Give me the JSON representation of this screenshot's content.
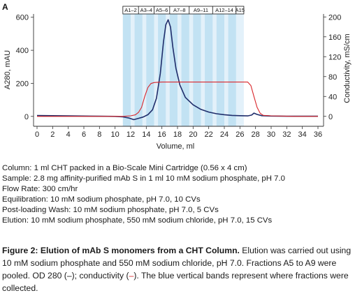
{
  "panel_label": "A",
  "chart_data": {
    "type": "line",
    "xlabel": "Volume, ml",
    "ylabel_left": "A280, mAU",
    "ylabel_right": "Conductivity, mS/cm",
    "xlim": [
      0,
      36
    ],
    "ylim_left": [
      -60,
      620
    ],
    "ylim_right": [
      -20,
      206
    ],
    "x_ticks": [
      0,
      2,
      4,
      6,
      8,
      10,
      12,
      14,
      16,
      18,
      20,
      22,
      24,
      26,
      28,
      30,
      32,
      34,
      36
    ],
    "y_left_ticks": [
      0,
      200,
      400,
      600
    ],
    "y_right_ticks": [
      0,
      40,
      80,
      120,
      160,
      200
    ],
    "fractions": [
      {
        "label": "A1–2",
        "start": 11,
        "end": 13
      },
      {
        "label": "A3–4",
        "start": 13,
        "end": 15
      },
      {
        "label": "A5–6",
        "start": 15,
        "end": 17
      },
      {
        "label": "A7–8",
        "start": 17,
        "end": 19.5
      },
      {
        "label": "A9–11",
        "start": 19.5,
        "end": 22.5
      },
      {
        "label": "A12–14",
        "start": 22.5,
        "end": 25.5
      },
      {
        "label": "A15",
        "start": 25.5,
        "end": 26.5
      }
    ],
    "collected_bands": [
      [
        11,
        12
      ],
      [
        12.5,
        13.5
      ],
      [
        14,
        15
      ],
      [
        15.5,
        16.5
      ],
      [
        17,
        18
      ],
      [
        18.5,
        19.5
      ],
      [
        20,
        21
      ],
      [
        21.5,
        22.5
      ],
      [
        23,
        24
      ],
      [
        24.5,
        25.5
      ]
    ],
    "series": [
      {
        "name": "OD 280",
        "color": "#1f2d6b",
        "axis": "left",
        "x": [
          0,
          4,
          8,
          10,
          11,
          11.8,
          12.4,
          13,
          13.6,
          14.2,
          14.8,
          15.3,
          15.8,
          16.2,
          16.5,
          16.8,
          17.1,
          17.4,
          17.8,
          18.3,
          19,
          20,
          21,
          22,
          23,
          24,
          25,
          26,
          27,
          27.5,
          27.8,
          28.2,
          28.8,
          30,
          32,
          34,
          36
        ],
        "y": [
          5,
          3,
          1,
          0,
          -3,
          -10,
          -20,
          -12,
          -4,
          10,
          40,
          110,
          260,
          450,
          555,
          585,
          540,
          420,
          290,
          190,
          115,
          70,
          42,
          26,
          16,
          10,
          6,
          4,
          3,
          8,
          20,
          12,
          4,
          2,
          1,
          1,
          1
        ]
      },
      {
        "name": "Conductivity",
        "color": "#d9262b",
        "axis": "right",
        "x": [
          0,
          8,
          11,
          12,
          12.6,
          13,
          13.4,
          13.8,
          14.2,
          14.6,
          15,
          16,
          20,
          24,
          27,
          27.4,
          27.8,
          28.2,
          28.6,
          29,
          30,
          33,
          36
        ],
        "y": [
          0,
          0,
          0,
          1,
          3,
          8,
          18,
          40,
          58,
          66,
          68,
          69,
          69,
          69,
          69,
          62,
          40,
          18,
          6,
          2,
          1,
          0,
          0
        ]
      }
    ]
  },
  "method": {
    "column": "Column: 1 ml CHT packed in a Bio-Scale Mini Cartridge (0.56 x 4 cm)",
    "sample": "Sample: 2.8 mg affinity-purified mAb S in 1 ml 10 mM sodium phosphate, pH 7.0",
    "flow_rate": "Flow Rate: 300 cm/hr",
    "equilibration": "Equilibration: 10 mM sodium phosphate, pH 7.0, 10 CVs",
    "wash": "Post-loading Wash: 10 mM sodium phosphate, pH 7.0, 5 CVs",
    "elution": "Elution: 10 mM sodium phosphate, 550 mM sodium chloride, pH 7.0, 15 CVs"
  },
  "caption": {
    "title": "Figure 2: Elution of mAb S monomers from a CHT Column.",
    "text1": " Elution was carried out using 10 mM sodium phosphate and 550 mM sodium chloride, pH 7.0. Fractions A5 to A9 were pooled. OD 280 (",
    "dash_blue": "–",
    "text2": "); conductivity (",
    "dash_red": "–",
    "text3": "). The blue vertical bands represent where fractions were collected."
  }
}
